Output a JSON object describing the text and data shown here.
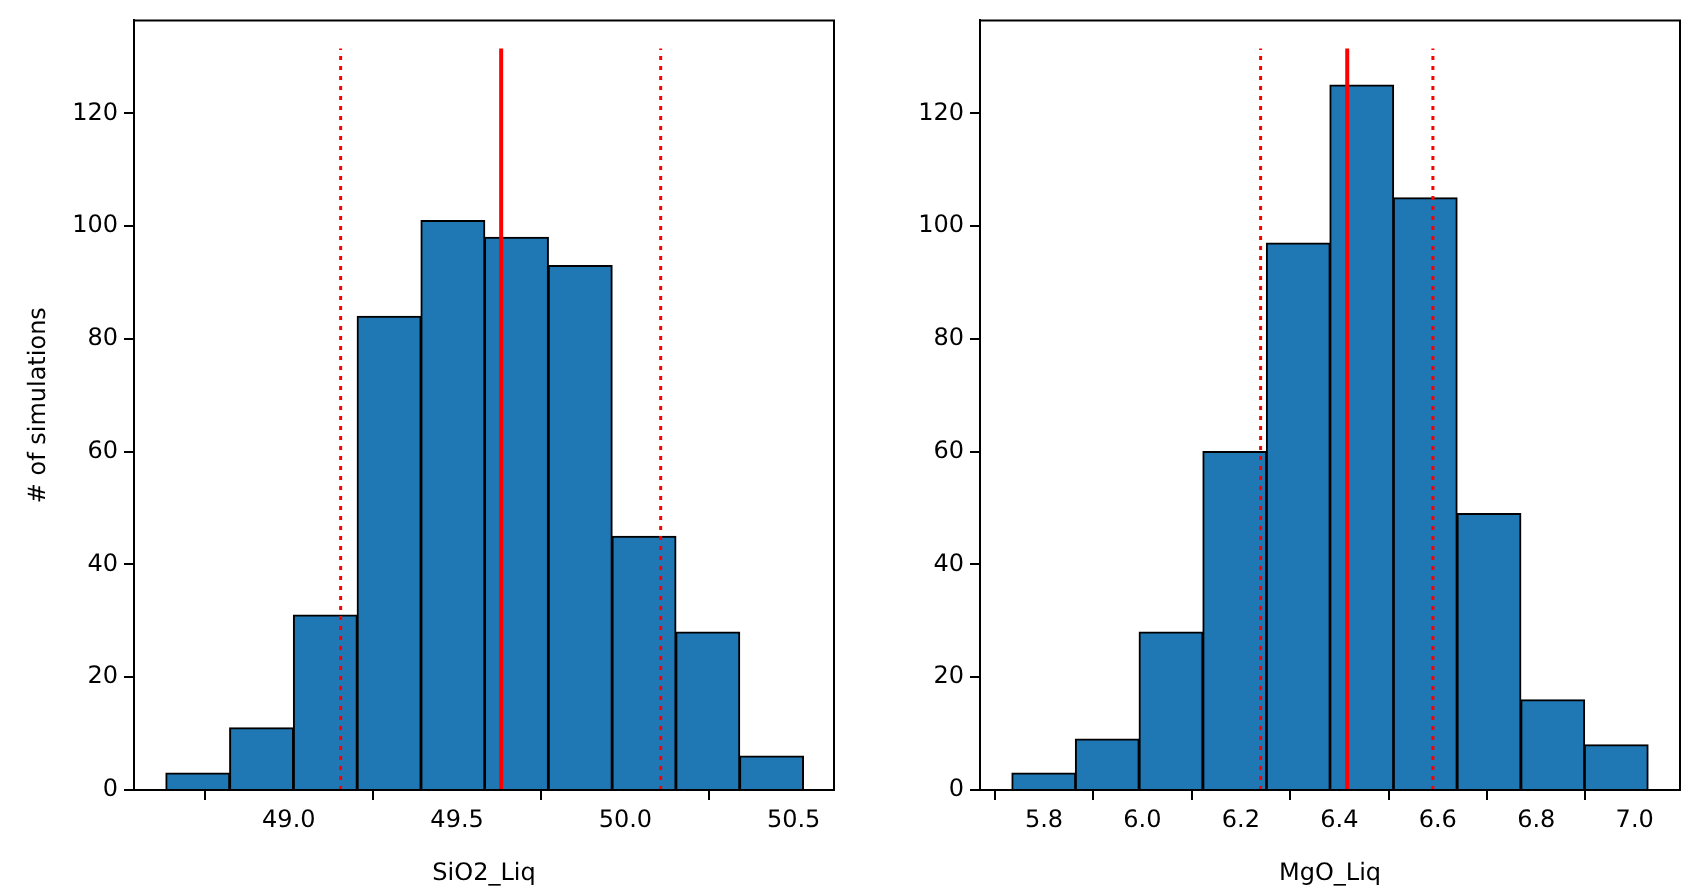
{
  "chart_data": [
    {
      "type": "histogram",
      "xlabel": "SiO2_Liq",
      "ylabel": "# of simulations",
      "color": "#1f77b4",
      "bins": [
        48.635,
        48.824,
        49.014,
        49.203,
        49.393,
        49.582,
        49.771,
        49.961,
        50.15,
        50.34,
        50.529
      ],
      "values": [
        3,
        11,
        31,
        84,
        101,
        98,
        93,
        45,
        28,
        6
      ],
      "xlim": [
        48.54,
        50.62
      ],
      "xticks": [
        {
          "value": 49,
          "label": "49.0"
        },
        {
          "value": 49.5,
          "label": "49.5"
        },
        {
          "value": 50,
          "label": "50.0"
        },
        {
          "value": 50.5,
          "label": "50.5"
        }
      ],
      "ylim": [
        0,
        136.5
      ],
      "yticks": [
        0,
        20,
        40,
        60,
        80,
        100,
        120
      ],
      "grid": false,
      "ref_lines": [
        {
          "axis": "x",
          "value": 49.631,
          "color": "#ff0000",
          "line_style": "solid"
        },
        {
          "axis": "x",
          "value": 49.154,
          "color": "#ff0000",
          "line_style": "dotted"
        },
        {
          "axis": "x",
          "value": 50.105,
          "color": "#ff0000",
          "line_style": "dotted"
        }
      ]
    },
    {
      "type": "histogram",
      "xlabel": "MgO_Liq",
      "color": "#1f77b4",
      "bins": [
        5.735,
        5.864,
        5.993,
        6.123,
        6.252,
        6.381,
        6.51,
        6.639,
        6.769,
        6.898,
        7.027
      ],
      "values": [
        3,
        9,
        28,
        60,
        97,
        125,
        105,
        49,
        16,
        8
      ],
      "xlim": [
        5.67,
        7.092
      ],
      "xticks": [
        {
          "value": 5.8,
          "label": "5.8"
        },
        {
          "value": 6,
          "label": "6.0"
        },
        {
          "value": 6.2,
          "label": "6.2"
        },
        {
          "value": 6.4,
          "label": "6.4"
        },
        {
          "value": 6.6,
          "label": "6.6"
        },
        {
          "value": 6.8,
          "label": "6.8"
        },
        {
          "value": 7,
          "label": "7.0"
        }
      ],
      "ylim": [
        0,
        136.5
      ],
      "yticks": [
        0,
        20,
        40,
        60,
        80,
        100,
        120
      ],
      "grid": false,
      "ref_lines": [
        {
          "axis": "x",
          "value": 6.416,
          "color": "#ff0000",
          "line_style": "solid"
        },
        {
          "axis": "x",
          "value": 6.24,
          "color": "#ff0000",
          "line_style": "dotted"
        },
        {
          "axis": "x",
          "value": 6.59,
          "color": "#ff0000",
          "line_style": "dotted"
        }
      ]
    }
  ]
}
